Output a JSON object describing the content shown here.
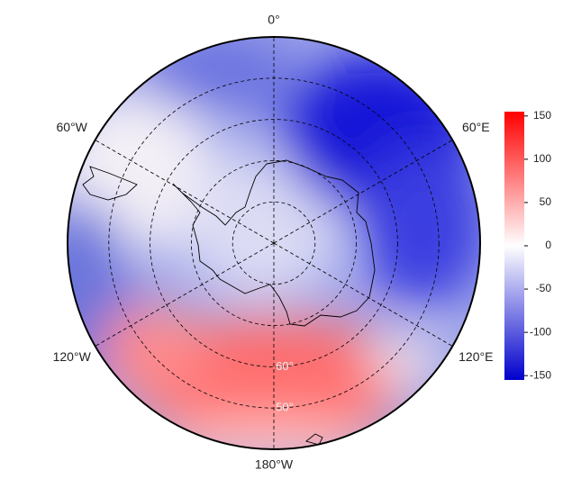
{
  "map": {
    "longitude_labels": [
      {
        "text": "0°",
        "angle": 0
      },
      {
        "text": "60°E",
        "angle": 60
      },
      {
        "text": "120°E",
        "angle": 120
      },
      {
        "text": "180°W",
        "angle": 180
      },
      {
        "text": "120°W",
        "angle": 240
      },
      {
        "text": "60°W",
        "angle": 300
      }
    ],
    "latitude_labels": [
      {
        "text": "60°",
        "lat": -60
      },
      {
        "text": "50°",
        "lat": -50
      }
    ],
    "latitude_circles": [
      -80,
      -70,
      -60,
      -50
    ],
    "lat_limit": -40
  },
  "colorbar": {
    "lim": [
      -155,
      155
    ],
    "ticks": [
      150,
      100,
      50,
      0,
      -50,
      -100,
      -150
    ],
    "colors": [
      "#0000cc",
      "#ffffff",
      "#ff0000"
    ]
  }
}
